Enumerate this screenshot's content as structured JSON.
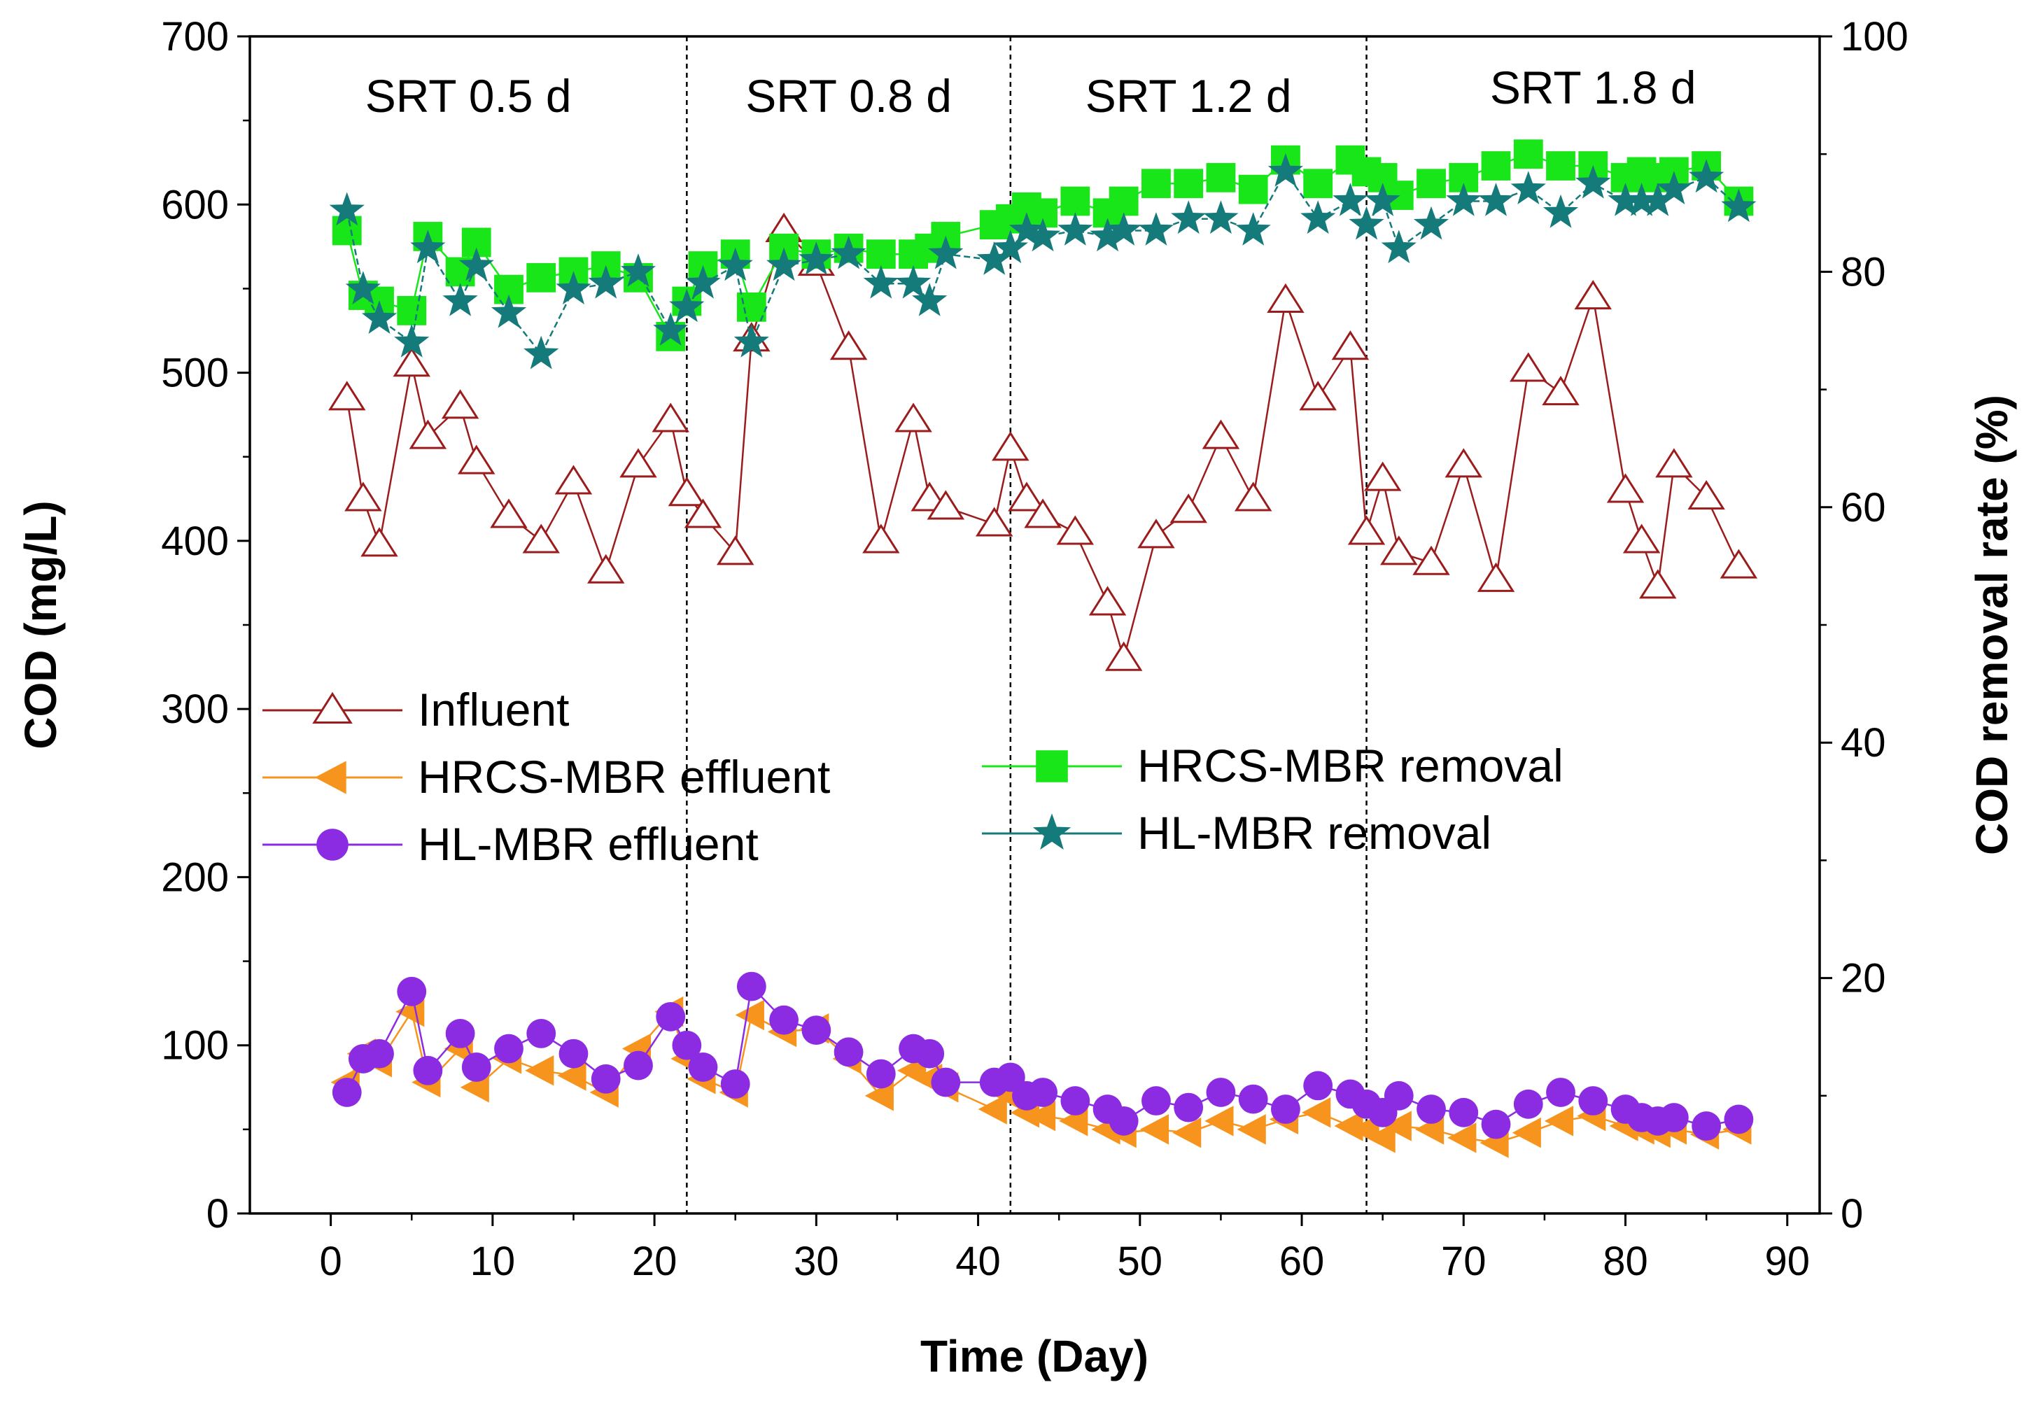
{
  "chart_data": {
    "type": "line",
    "title": "",
    "xlabel": "Time (Day)",
    "ylabel": "COD (mg/L)",
    "y2label": "COD removal rate (%)",
    "xlim": [
      -5,
      92
    ],
    "ylim": [
      0,
      700
    ],
    "y2lim": [
      0,
      100
    ],
    "x_ticks": [
      0,
      10,
      20,
      30,
      40,
      50,
      60,
      70,
      80,
      90
    ],
    "y_ticks": [
      0,
      100,
      200,
      300,
      400,
      500,
      600,
      700
    ],
    "y2_ticks": [
      0,
      20,
      40,
      60,
      80,
      100
    ],
    "grid": false,
    "period_boundaries": [
      22,
      42,
      64
    ],
    "periods": [
      {
        "label": "SRT 0.5 d",
        "start": -5,
        "end": 22
      },
      {
        "label": "SRT 0.8 d",
        "start": 22,
        "end": 42
      },
      {
        "label": "SRT 1.2 d",
        "start": 42,
        "end": 64
      },
      {
        "label": "SRT 1.8 d",
        "start": 64,
        "end": 92
      }
    ],
    "series": [
      {
        "name": "Influent",
        "axis": "left",
        "color": "#9b1c1c",
        "marker": "triangle-open",
        "x": [
          1,
          2,
          3,
          5,
          6,
          8,
          9,
          11,
          13,
          15,
          17,
          19,
          21,
          22,
          23,
          25,
          26,
          28,
          30,
          32,
          34,
          36,
          37,
          38,
          41,
          42,
          43,
          44,
          46,
          48,
          49,
          51,
          53,
          55,
          57,
          59,
          61,
          63,
          64,
          65,
          66,
          68,
          70,
          72,
          74,
          76,
          78,
          80,
          81,
          82,
          83,
          85,
          87
        ],
        "values": [
          485,
          425,
          398,
          505,
          462,
          480,
          447,
          415,
          400,
          435,
          382,
          445,
          472,
          428,
          415,
          393,
          520,
          585,
          565,
          515,
          400,
          472,
          425,
          420,
          410,
          455,
          425,
          415,
          405,
          363,
          330,
          403,
          418,
          462,
          425,
          543,
          485,
          515,
          405,
          437,
          393,
          387,
          445,
          377,
          502,
          488,
          545,
          430,
          400,
          373,
          445,
          426,
          385
        ]
      },
      {
        "name": "HRCS-MBR effluent",
        "axis": "left",
        "color": "#f7941d",
        "marker": "triangle-left",
        "x": [
          1,
          2,
          3,
          5,
          6,
          8,
          9,
          11,
          13,
          15,
          17,
          19,
          21,
          22,
          23,
          25,
          26,
          28,
          30,
          32,
          34,
          36,
          37,
          38,
          41,
          42,
          43,
          44,
          46,
          48,
          49,
          51,
          53,
          55,
          57,
          59,
          61,
          63,
          64,
          65,
          66,
          68,
          70,
          72,
          74,
          76,
          78,
          80,
          81,
          82,
          83,
          85,
          87
        ],
        "values": [
          78,
          95,
          90,
          120,
          78,
          98,
          75,
          92,
          85,
          82,
          72,
          98,
          120,
          92,
          80,
          72,
          118,
          108,
          110,
          92,
          70,
          85,
          80,
          75,
          62,
          70,
          60,
          58,
          55,
          50,
          48,
          50,
          48,
          55,
          50,
          56,
          60,
          52,
          50,
          45,
          52,
          50,
          45,
          42,
          48,
          55,
          58,
          52,
          50,
          48,
          50,
          47,
          50
        ]
      },
      {
        "name": "HL-MBR effluent",
        "axis": "left",
        "color": "#8b2be2",
        "marker": "circle",
        "x": [
          1,
          2,
          3,
          5,
          6,
          8,
          9,
          11,
          13,
          15,
          17,
          19,
          21,
          22,
          23,
          25,
          26,
          28,
          30,
          32,
          34,
          36,
          37,
          38,
          41,
          42,
          43,
          44,
          46,
          48,
          49,
          51,
          53,
          55,
          57,
          59,
          61,
          63,
          64,
          65,
          66,
          68,
          70,
          72,
          74,
          76,
          78,
          80,
          81,
          82,
          83,
          85,
          87
        ],
        "values": [
          72,
          92,
          95,
          132,
          85,
          107,
          87,
          98,
          107,
          95,
          80,
          88,
          117,
          100,
          87,
          77,
          135,
          115,
          109,
          96,
          83,
          98,
          95,
          78,
          78,
          81,
          70,
          72,
          67,
          62,
          55,
          67,
          63,
          72,
          68,
          62,
          76,
          71,
          65,
          60,
          70,
          62,
          60,
          53,
          65,
          72,
          67,
          62,
          57,
          55,
          57,
          52,
          56
        ]
      },
      {
        "name": "HRCS-MBR removal",
        "axis": "right",
        "color": "#19e619",
        "marker": "square",
        "x": [
          1,
          2,
          3,
          5,
          6,
          8,
          9,
          11,
          13,
          15,
          17,
          19,
          21,
          22,
          23,
          25,
          26,
          28,
          30,
          32,
          34,
          36,
          37,
          38,
          41,
          42,
          43,
          44,
          46,
          48,
          49,
          51,
          53,
          55,
          57,
          59,
          61,
          63,
          64,
          65,
          66,
          68,
          70,
          72,
          74,
          76,
          78,
          80,
          81,
          82,
          83,
          85,
          87
        ],
        "values": [
          83.5,
          78,
          77.5,
          76.7,
          83,
          80,
          82.5,
          78.5,
          79.5,
          80,
          80.5,
          79.5,
          74.5,
          77.5,
          80.5,
          81.5,
          77,
          82,
          81.5,
          82,
          81.5,
          81.5,
          82,
          83,
          84,
          84.5,
          85.5,
          85,
          86,
          85,
          86,
          87.5,
          87.5,
          88,
          87,
          89.5,
          87.5,
          89.5,
          88.5,
          88,
          86.5,
          87.5,
          88,
          89,
          90,
          89,
          89,
          88,
          88.5,
          88,
          88.5,
          89,
          86
        ]
      },
      {
        "name": "HL-MBR removal",
        "axis": "right",
        "color": "#157a7a",
        "marker": "star",
        "x": [
          1,
          2,
          3,
          5,
          6,
          8,
          9,
          11,
          13,
          15,
          17,
          19,
          21,
          22,
          23,
          25,
          26,
          28,
          30,
          32,
          34,
          36,
          37,
          38,
          41,
          42,
          43,
          44,
          46,
          48,
          49,
          51,
          53,
          55,
          57,
          59,
          61,
          63,
          64,
          65,
          66,
          68,
          70,
          72,
          74,
          76,
          78,
          80,
          81,
          82,
          83,
          85,
          87
        ],
        "values": [
          85.2,
          78.5,
          76,
          74,
          82,
          77.5,
          80.5,
          76.5,
          73,
          78.5,
          79,
          80,
          75,
          77,
          79,
          80.5,
          74,
          80.5,
          81,
          81.5,
          79,
          79,
          77.5,
          81.5,
          81,
          82,
          83.5,
          83,
          83.5,
          83,
          83.5,
          83.5,
          84.5,
          84.5,
          83.5,
          88.5,
          84.5,
          86,
          84,
          86,
          82,
          84,
          86,
          86,
          87,
          85,
          87.5,
          86,
          86,
          86,
          87,
          88,
          85.5
        ]
      }
    ],
    "legend": {
      "left_group": [
        "Influent",
        "HRCS-MBR effluent",
        "HL-MBR effluent"
      ],
      "right_group": [
        "HRCS-MBR removal",
        "HL-MBR removal"
      ]
    }
  }
}
